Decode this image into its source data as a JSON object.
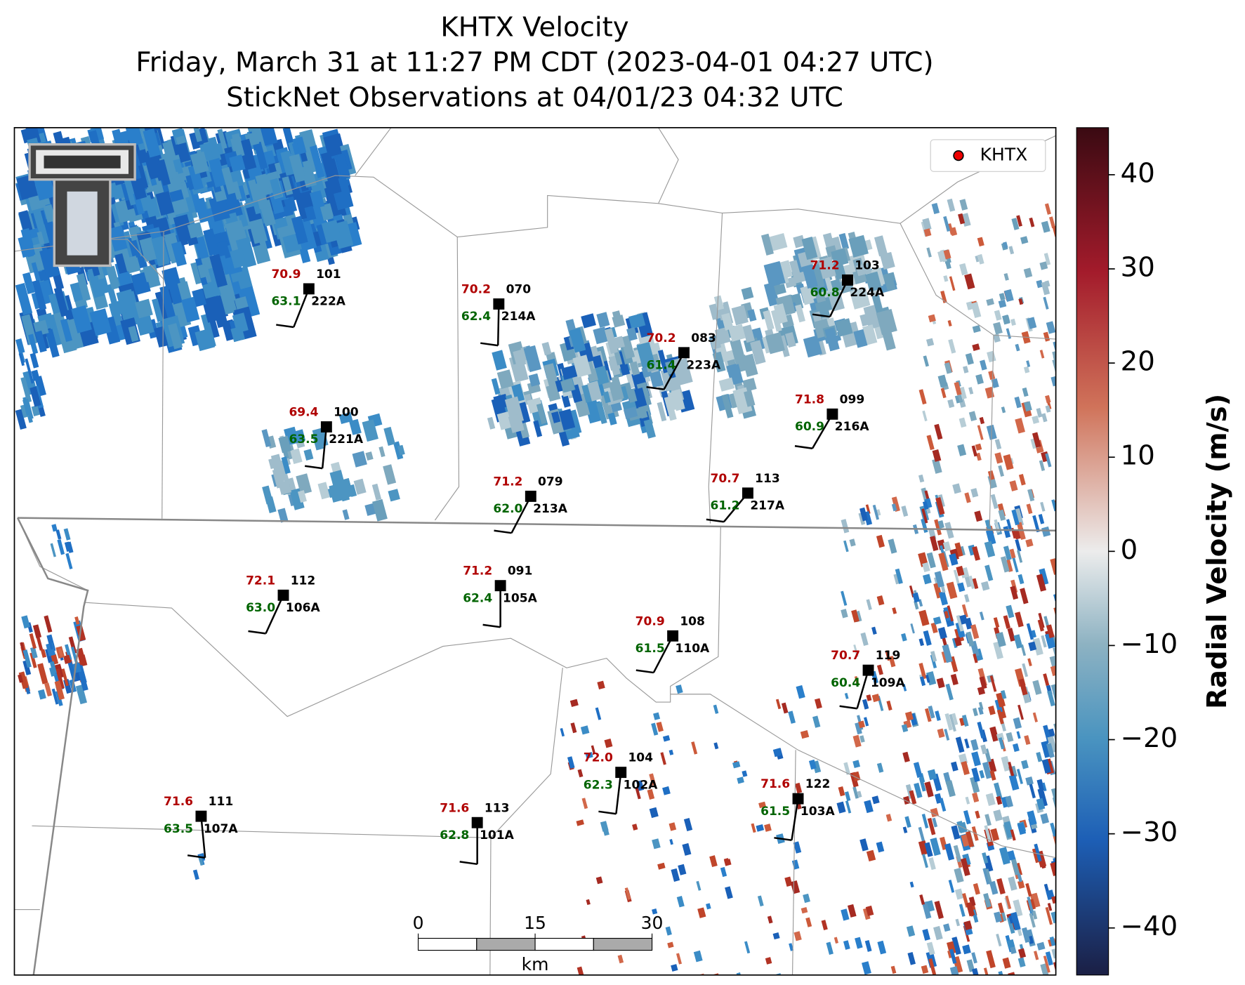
{
  "title": [
    "KHTX Velocity",
    "Friday, March 31 at 11:27 PM CDT (2023-04-01 04:27 UTC)",
    "StickNet Observations at 04/01/23 04:32 UTC"
  ],
  "legend": "KHTX",
  "colorbar": {
    "label": "Radial Velocity (m/s)",
    "lim": [
      -45,
      45
    ],
    "ticks": [
      {
        "value": -40,
        "label": "−40"
      },
      {
        "value": -30,
        "label": "−30"
      },
      {
        "value": -20,
        "label": "−20"
      },
      {
        "value": -10,
        "label": "−10"
      },
      0,
      10,
      20,
      30,
      40
    ]
  },
  "scale_bar": {
    "ticks": [
      0,
      15,
      30
    ],
    "unit": "km"
  },
  "stations": [
    {
      "id": "222A",
      "number": "101",
      "temperature": "70.9",
      "dewpoint": "63.1"
    },
    {
      "id": "214A",
      "number": "070",
      "temperature": "70.2",
      "dewpoint": "62.4"
    },
    {
      "id": "224A",
      "number": "103",
      "temperature": "71.2",
      "dewpoint": "60.8"
    },
    {
      "id": "223A",
      "number": "083",
      "temperature": "70.2",
      "dewpoint": "61.4"
    },
    {
      "id": "221A",
      "number": "100",
      "temperature": "69.4",
      "dewpoint": "63.5"
    },
    {
      "id": "216A",
      "number": "099",
      "temperature": "71.8",
      "dewpoint": "60.9"
    },
    {
      "id": "213A",
      "number": "079",
      "temperature": "71.2",
      "dewpoint": "62.0"
    },
    {
      "id": "217A",
      "number": "113",
      "temperature": "70.7",
      "dewpoint": "61.2"
    },
    {
      "id": "106A",
      "number": "112",
      "temperature": "72.1",
      "dewpoint": "63.0"
    },
    {
      "id": "105A",
      "number": "091",
      "temperature": "71.2",
      "dewpoint": "62.4"
    },
    {
      "id": "110A",
      "number": "108",
      "temperature": "70.9",
      "dewpoint": "61.5"
    },
    {
      "id": "109A",
      "number": "119",
      "temperature": "70.7",
      "dewpoint": "60.4"
    },
    {
      "id": "102A",
      "number": "104",
      "temperature": "72.0",
      "dewpoint": "62.3"
    },
    {
      "id": "103A",
      "number": "122",
      "temperature": "71.6",
      "dewpoint": "61.5"
    },
    {
      "id": "107A",
      "number": "111",
      "temperature": "71.6",
      "dewpoint": "63.5"
    },
    {
      "id": "101A",
      "number": "113",
      "temperature": "71.6",
      "dewpoint": "62.8"
    }
  ]
}
